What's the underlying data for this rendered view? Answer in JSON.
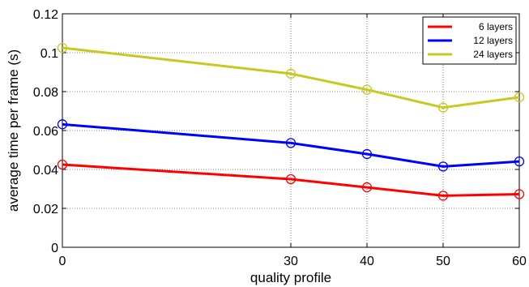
{
  "chart_data": {
    "type": "line",
    "title": "",
    "xlabel": "quality profile",
    "ylabel": "average time per frame (s)",
    "xlim": [
      0,
      60
    ],
    "ylim": [
      0,
      0.12
    ],
    "xticks": [
      0,
      30,
      40,
      50,
      60
    ],
    "xtick_labels": [
      "0",
      "30",
      "40",
      "50",
      "60"
    ],
    "yticks": [
      0,
      0.02,
      0.04,
      0.06,
      0.08,
      0.1,
      0.12
    ],
    "ytick_labels": [
      "0",
      "0.02",
      "0.04",
      "0.06",
      "0.08",
      "0.1",
      "0.12"
    ],
    "grid": true,
    "legend_position": "top-right",
    "x": [
      0,
      30,
      40,
      50,
      60
    ],
    "series": [
      {
        "name": "6 layers",
        "color": "#ff0000",
        "values": [
          0.0425,
          0.035,
          0.0308,
          0.0265,
          0.0273
        ]
      },
      {
        "name": "12 layers",
        "color": "#0000ff",
        "values": [
          0.0632,
          0.0536,
          0.0479,
          0.0415,
          0.0441
        ]
      },
      {
        "name": "24 layers",
        "color": "#c8c820",
        "values": [
          0.1025,
          0.0892,
          0.081,
          0.0718,
          0.0771
        ]
      }
    ]
  }
}
